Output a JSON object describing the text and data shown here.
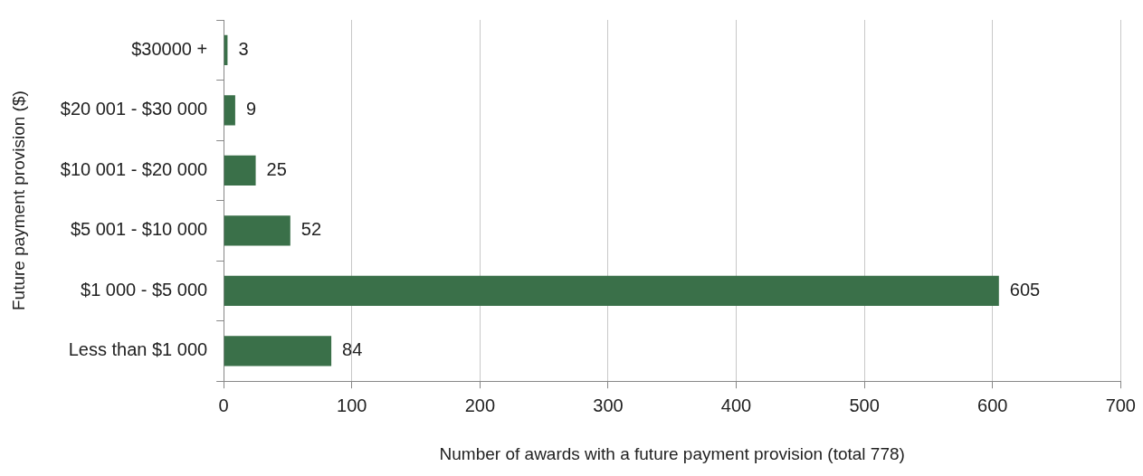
{
  "chart_data": {
    "type": "bar",
    "orientation": "horizontal",
    "xlabel": "Number of awards with a future payment provision (total 778)",
    "ylabel": "Future payment provision ($)",
    "categories": [
      "$30000 +",
      "$20 001 - $30 000",
      "$10 001 - $20 000",
      "$5 001 - $10 000",
      "$1 000 - $5 000",
      "Less than $1 000"
    ],
    "values": [
      3,
      9,
      25,
      52,
      605,
      84
    ],
    "color": "#3a7049",
    "xlim": [
      0,
      700
    ],
    "xticks": [
      0,
      100,
      200,
      300,
      400,
      500,
      600,
      700
    ],
    "grid": "x",
    "legend": false,
    "data_labels": true
  }
}
